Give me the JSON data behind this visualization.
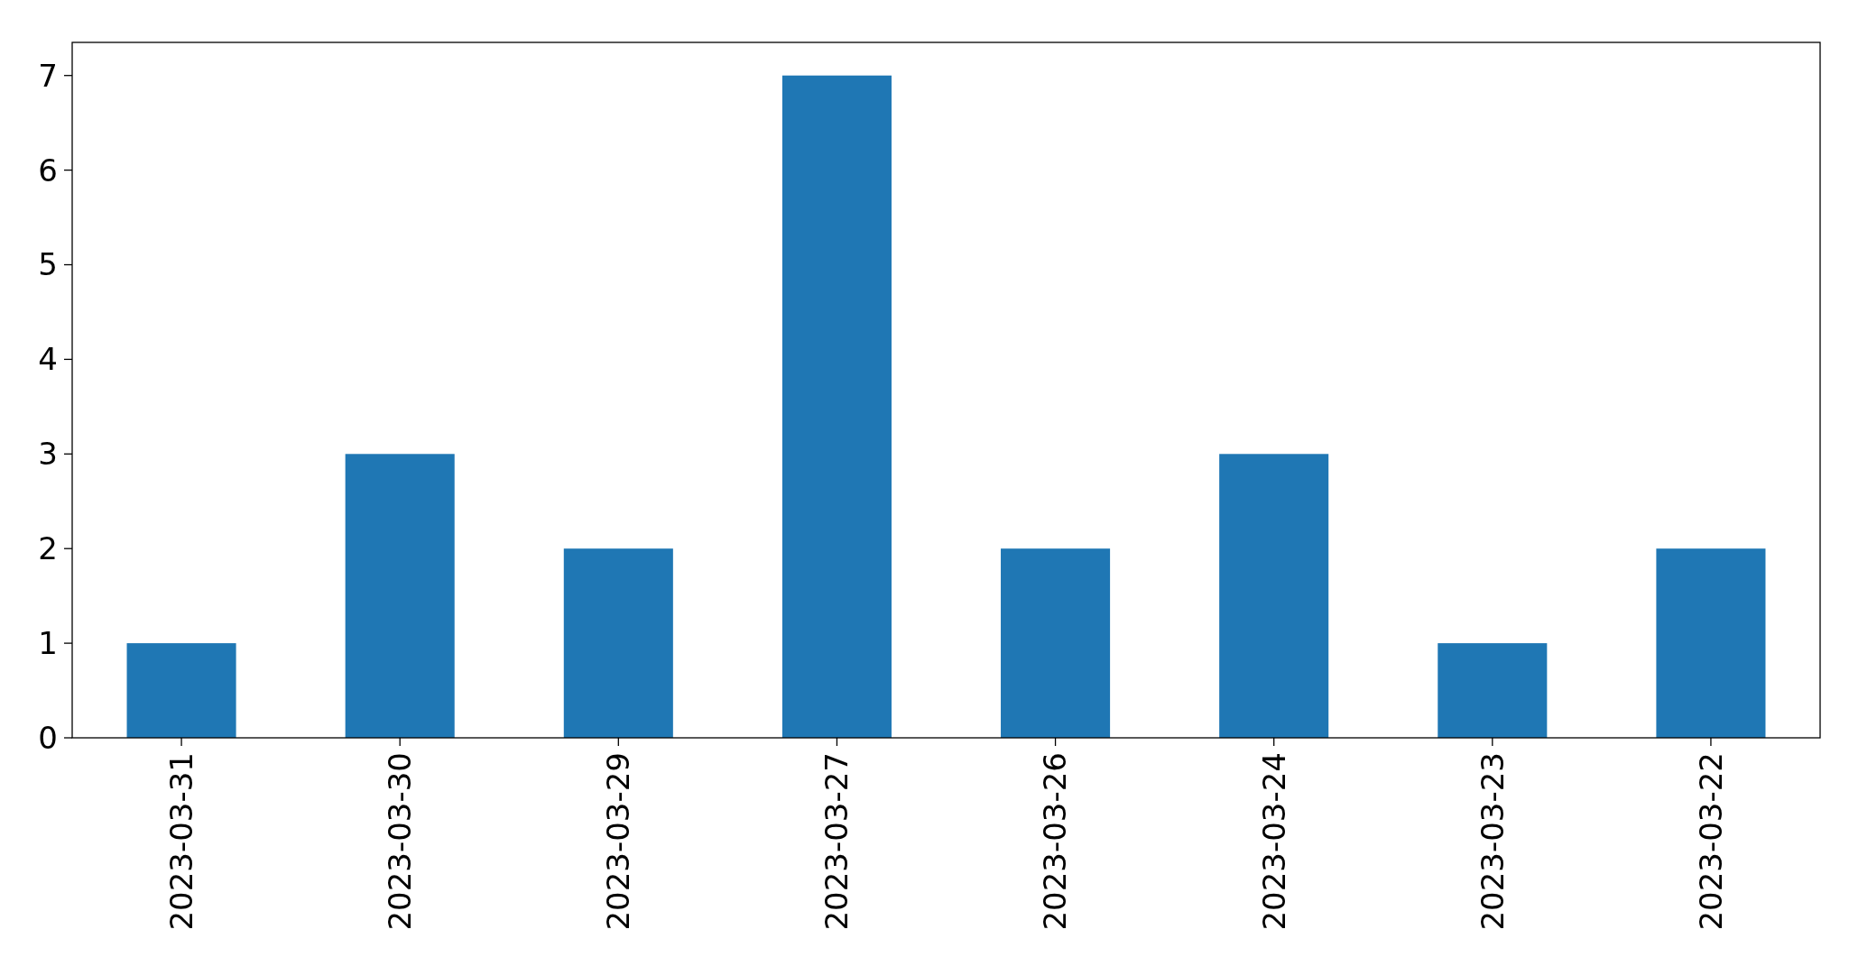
{
  "chart_data": {
    "type": "bar",
    "categories": [
      "2023-03-31",
      "2023-03-30",
      "2023-03-29",
      "2023-03-27",
      "2023-03-26",
      "2023-03-24",
      "2023-03-23",
      "2023-03-22"
    ],
    "values": [
      1,
      3,
      2,
      7,
      2,
      3,
      1,
      2
    ],
    "color": "#1f77b4",
    "ylim": [
      0,
      7.35
    ],
    "yticks": [
      0,
      1,
      2,
      3,
      4,
      5,
      6,
      7
    ],
    "grid": false
  }
}
